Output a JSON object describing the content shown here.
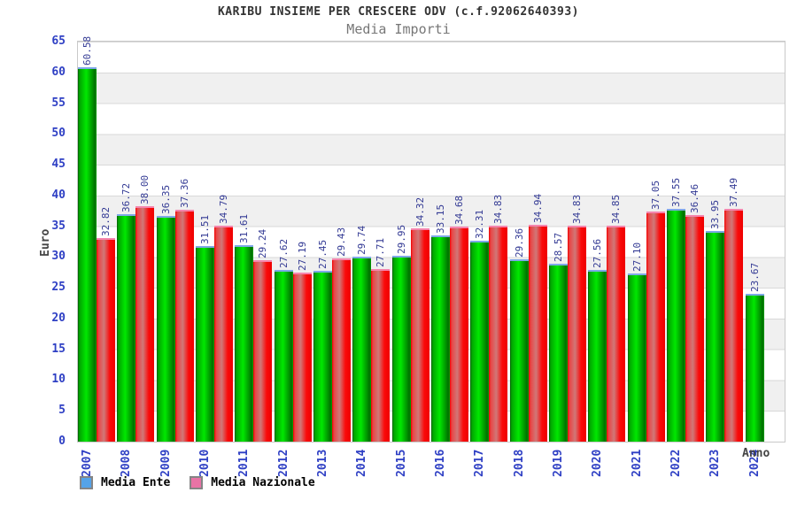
{
  "title": "KARIBU INSIEME PER CRESCERE ODV (c.f.92062640393)",
  "subtitle": "Media Importi",
  "chart_data": {
    "type": "bar",
    "title": "KARIBU INSIEME PER CRESCERE ODV (c.f.92062640393)",
    "subtitle": "Media Importi",
    "xlabel": "Anno",
    "ylabel": "Euro",
    "ylim": [
      0,
      65
    ],
    "ytick_step": 5,
    "yticks": [
      0,
      5,
      10,
      15,
      20,
      25,
      30,
      35,
      40,
      45,
      50,
      55,
      60,
      65
    ],
    "grid": true,
    "legend_position": "bottom-left",
    "categories": [
      "2007",
      "2008",
      "2009",
      "2010",
      "2011",
      "2012",
      "2013",
      "2014",
      "2015",
      "2016",
      "2017",
      "2018",
      "2019",
      "2020",
      "2021",
      "2022",
      "2023",
      "2024"
    ],
    "series": [
      {
        "name": "Media Ente",
        "color": "#00cc00",
        "values": [
          60.58,
          36.72,
          36.35,
          31.51,
          31.61,
          27.62,
          27.45,
          29.74,
          29.95,
          33.15,
          32.31,
          29.36,
          28.57,
          27.56,
          27.1,
          37.55,
          33.95,
          23.67
        ]
      },
      {
        "name": "Media Nazionale",
        "color": "#ff0000",
        "values": [
          32.82,
          38.0,
          37.36,
          34.79,
          29.24,
          27.19,
          29.43,
          27.71,
          34.32,
          34.68,
          34.83,
          34.94,
          34.83,
          34.85,
          37.05,
          36.46,
          37.49,
          null
        ]
      }
    ]
  },
  "axis": {
    "ylabel": "Euro",
    "xlabel": "Anno"
  },
  "legend": {
    "items": [
      {
        "label": "Media Ente",
        "swatch_color": "#55a3e8"
      },
      {
        "label": "Media Nazionale",
        "swatch_color": "#e873a5"
      }
    ]
  },
  "colors": {
    "title": "#333333",
    "subtitle": "#777777",
    "axis_tick_label": "#2e3fc4",
    "value_label": "#333a94",
    "axis_title": "#444444",
    "band": "#f0f0f0",
    "gridline": "#d9d9d9",
    "green_bar_cap": "#7fa8e8",
    "red_bar_cap": "#f585ad",
    "green_bar_main": "#00cc00",
    "red_bar_main": "#ff0000"
  }
}
